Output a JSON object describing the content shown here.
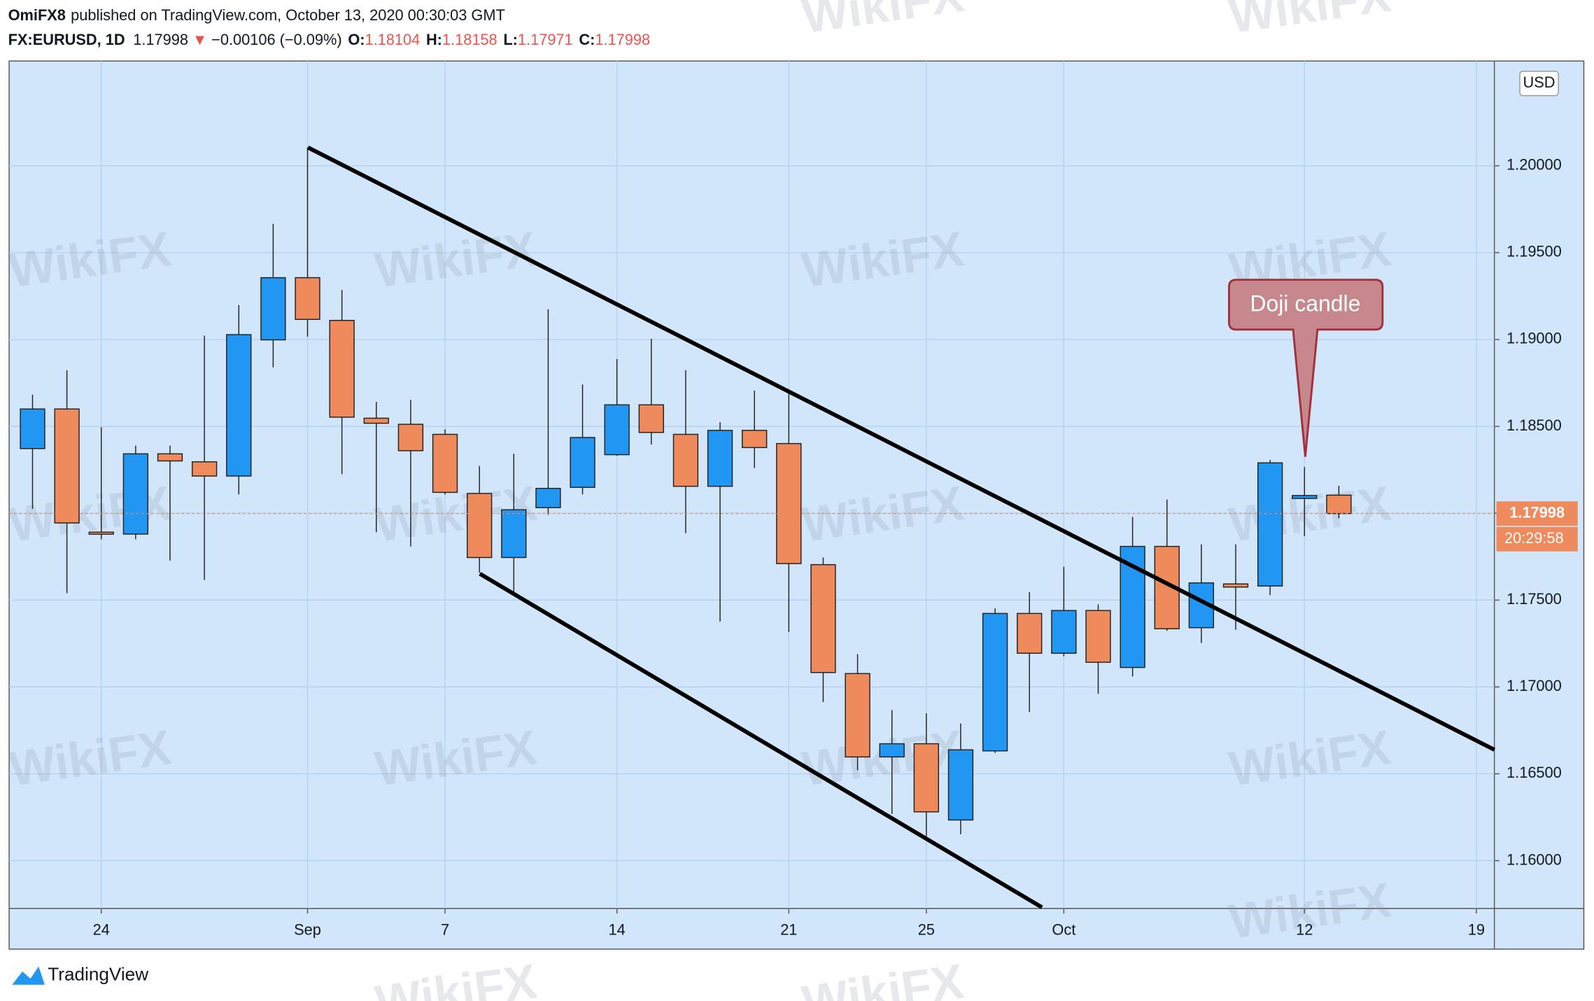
{
  "header": {
    "author": "OmiFX8",
    "published": "published on TradingView.com, October 13, 2020 00:30:03 GMT",
    "symbol": "FX:EURUSD, 1D",
    "arrow": "▼",
    "change": "−0.00106 (−0.09%)",
    "open_label": "O:",
    "high_label": "H:",
    "low_label": "L:",
    "close_label": "C:"
  },
  "chart_data": {
    "type": "candlestick",
    "categories": [
      null,
      null,
      "24",
      null,
      null,
      null,
      null,
      null,
      "Sep",
      null,
      null,
      null,
      "7",
      null,
      null,
      null,
      null,
      "14",
      null,
      null,
      null,
      null,
      "21",
      null,
      null,
      null,
      "25",
      null,
      null,
      null,
      "Oct",
      null,
      null,
      null,
      null,
      null,
      null,
      "12",
      null,
      null,
      null,
      null,
      "19"
    ],
    "open": [
      1.18372,
      1.186,
      1.17891,
      1.1788,
      1.18342,
      1.18296,
      1.18214,
      1.18998,
      1.19356,
      1.1911,
      1.18547,
      1.18512,
      1.18454,
      1.18114,
      1.17745,
      1.18032,
      1.18149,
      1.18337,
      1.18624,
      1.18454,
      1.18155,
      1.18477,
      1.18401,
      1.17704,
      1.17077,
      1.16597,
      1.16673,
      1.16234,
      1.16632,
      1.17423,
      1.17194,
      1.1744,
      1.17112,
      1.17809,
      1.17341,
      1.17593,
      1.17581,
      1.18085,
      1.18104,
      null,
      null,
      null,
      null
    ],
    "high": [
      1.18682,
      1.18823,
      1.18495,
      1.18389,
      1.18389,
      1.19022,
      1.19198,
      1.19666,
      1.20105,
      1.19285,
      1.18641,
      1.18653,
      1.18483,
      1.18272,
      1.18342,
      1.19174,
      1.18741,
      1.18887,
      1.19004,
      1.18823,
      1.18524,
      1.18706,
      1.187,
      1.17745,
      1.17189,
      1.16867,
      1.16849,
      1.1679,
      1.17452,
      1.17546,
      1.17692,
      1.17476,
      1.17979,
      1.18079,
      1.17821,
      1.17821,
      1.18307,
      1.18266,
      1.18158,
      null,
      null,
      null,
      null
    ],
    "low": [
      1.18026,
      1.1754,
      1.1785,
      1.1785,
      1.17727,
      1.17616,
      1.18108,
      1.1884,
      1.19016,
      1.18225,
      1.17891,
      1.17809,
      1.18108,
      1.17657,
      1.17546,
      1.17991,
      1.18108,
      1.18331,
      1.18395,
      1.17886,
      1.17376,
      1.1826,
      1.17317,
      1.16913,
      1.16521,
      1.16269,
      1.1614,
      1.16152,
      1.1662,
      1.16855,
      1.17177,
      1.1696,
      1.1706,
      1.17323,
      1.17253,
      1.17329,
      1.17528,
      1.17868,
      1.17971,
      null,
      null,
      null,
      null
    ],
    "close": [
      1.186,
      1.17944,
      1.1788,
      1.18342,
      1.18301,
      1.18214,
      1.19028,
      1.19356,
      1.19116,
      1.18553,
      1.18518,
      1.1836,
      1.1812,
      1.17745,
      1.1802,
      1.18143,
      1.18436,
      1.18624,
      1.18465,
      1.18155,
      1.18477,
      1.18378,
      1.1771,
      1.17083,
      1.16597,
      1.16673,
      1.16281,
      1.16638,
      1.17423,
      1.17194,
      1.1744,
      1.17142,
      1.17809,
      1.17335,
      1.17599,
      1.17575,
      1.1829,
      1.18102,
      1.17998,
      null,
      null,
      null,
      null
    ],
    "up_color": "#2196f3",
    "down_color": "#ef8a5c",
    "ylim": [
      1.15725,
      1.20603
    ],
    "yticks": [
      {
        "value": 1.16,
        "label": "1.16000"
      },
      {
        "value": 1.165,
        "label": "1.16500"
      },
      {
        "value": 1.17,
        "label": "1.17000"
      },
      {
        "value": 1.175,
        "label": "1.17500"
      },
      {
        "value": 1.18,
        "label": "1.18000"
      },
      {
        "value": 1.185,
        "label": "1.18500"
      },
      {
        "value": 1.19,
        "label": "1.19000"
      },
      {
        "value": 1.195,
        "label": "1.19500"
      },
      {
        "value": 1.2,
        "label": "1.20000"
      }
    ],
    "grid": true,
    "currency": "USD",
    "countdown": "20:29:58",
    "annotation": "Doji candle"
  },
  "footer": {
    "brand": "TradingView",
    "watermark": "WikiFX"
  }
}
